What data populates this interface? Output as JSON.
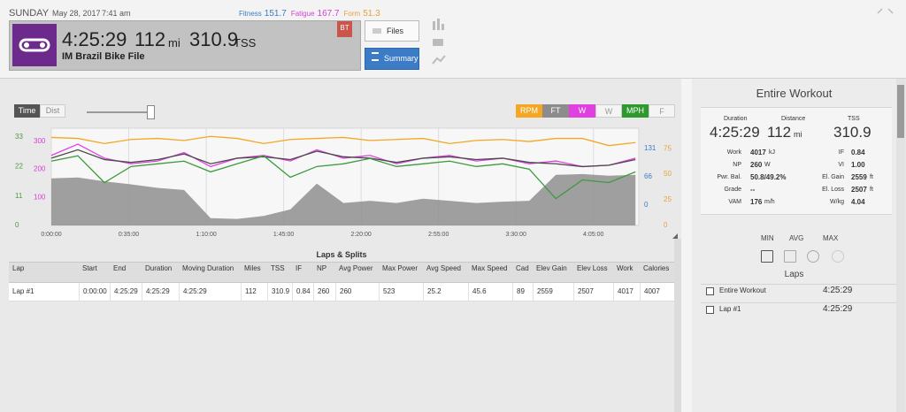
{
  "header": {
    "day": "SUNDAY",
    "date": "May 28, 2017",
    "time": "7:41 am",
    "metrics": [
      {
        "label": "Fitness",
        "value": "151.7",
        "color": "#3b7dc4"
      },
      {
        "label": "Fatigue",
        "value": "167.7",
        "color": "#d63fd6"
      },
      {
        "label": "Form",
        "value": "51.3",
        "color": "#e8a23a"
      }
    ],
    "duration": "4:25:29",
    "distance": "112",
    "distance_unit": "mi",
    "tss": "310.9",
    "tss_unit": "TSS",
    "title": "IM Brazil Bike File",
    "badge": "BT",
    "buttons": [
      "Files",
      "Summary"
    ]
  },
  "controls": {
    "modes": [
      "Time",
      "Dist"
    ]
  },
  "chart": {
    "type": "line",
    "toggles": [
      {
        "label": "RPM",
        "color": "#f5a623",
        "active": true
      },
      {
        "label": "FT",
        "color": "#8c8c8c",
        "active": true
      },
      {
        "label": "W",
        "color": "#e040e0",
        "active": true
      },
      {
        "label": "W",
        "color": "#999999",
        "active": false
      },
      {
        "label": "MPH",
        "color": "#2e9a2e",
        "active": true
      },
      {
        "label": "F",
        "color": "#999999",
        "active": false
      }
    ],
    "xlim": [
      0,
      265.5
    ],
    "xticks": [
      {
        "value": 0,
        "label": "0:00:00"
      },
      {
        "value": 35,
        "label": "0:35:00"
      },
      {
        "value": 70,
        "label": "1:10:00"
      },
      {
        "value": 105,
        "label": "1:45:00"
      },
      {
        "value": 140,
        "label": "2:20:00"
      },
      {
        "value": 175,
        "label": "2:55:00"
      },
      {
        "value": 210,
        "label": "3:30:00"
      },
      {
        "value": 245,
        "label": "4:05:00"
      }
    ],
    "y_axes": [
      {
        "color": "#4a9a3a",
        "ylim": [
          0,
          36.3
        ],
        "yticks": [
          0,
          11,
          22,
          33
        ]
      },
      {
        "color": "#d63fd6",
        "ylim": [
          0,
          347
        ],
        "yticks": [
          100,
          200,
          300
        ]
      },
      {
        "color": "#3b7dc4",
        "ylim": [
          -47,
          178
        ],
        "yticks": [
          0,
          66,
          131
        ]
      },
      {
        "color": "#e8a23a",
        "ylim": [
          0,
          95
        ],
        "yticks": [
          0,
          25,
          50,
          75
        ]
      }
    ],
    "x": [
      0,
      12,
      24,
      36,
      48,
      60,
      72,
      84,
      96,
      108,
      120,
      132,
      144,
      156,
      168,
      180,
      192,
      204,
      216,
      228,
      240,
      252,
      264
    ],
    "series": [
      {
        "color": "#8f8f8f",
        "axis": 2,
        "fill": true,
        "values": [
          62,
          64,
          55,
          48,
          40,
          35,
          -30,
          -32,
          -25,
          -10,
          50,
          5,
          10,
          5,
          15,
          10,
          5,
          8,
          10,
          70,
          72,
          68,
          70
        ]
      },
      {
        "color": "#f5a623",
        "axis": 3,
        "values": [
          86,
          85,
          80,
          84,
          85,
          83,
          87,
          85,
          80,
          84,
          85,
          86,
          83,
          84,
          85,
          80,
          83,
          84,
          82,
          85,
          85,
          78,
          81
        ]
      },
      {
        "color": "#e040e0",
        "axis": 1,
        "values": [
          250,
          290,
          240,
          220,
          230,
          260,
          210,
          240,
          250,
          230,
          270,
          240,
          250,
          220,
          240,
          250,
          230,
          240,
          220,
          230,
          210,
          215,
          240
        ]
      },
      {
        "color": "#4a4a4a",
        "axis": 1,
        "values": [
          240,
          270,
          235,
          225,
          235,
          255,
          220,
          240,
          245,
          235,
          265,
          245,
          240,
          225,
          240,
          245,
          235,
          240,
          225,
          220,
          210,
          215,
          235
        ]
      },
      {
        "color": "#3d9a3d",
        "axis": 0,
        "values": [
          24,
          26,
          16,
          22,
          23,
          24,
          20,
          23,
          26,
          18,
          22,
          23,
          25,
          22,
          23,
          24,
          22,
          23,
          21,
          10,
          17,
          16,
          20
        ]
      }
    ]
  },
  "laps": {
    "title": "Laps & Splits",
    "columns": [
      "Lap",
      "Start",
      "End",
      "Duration",
      "Moving Duration",
      "Miles",
      "TSS",
      "IF",
      "NP",
      "Avg Power",
      "Max Power",
      "Avg Speed",
      "Max Speed",
      "Cad",
      "Elev Gain",
      "Elev Loss",
      "Work",
      "Calories"
    ],
    "rows": [
      [
        "Lap #1",
        "0:00:00",
        "4:25:29",
        "4:25:29",
        "4:25:29",
        "112",
        "310.9",
        "0.84",
        "260",
        "260",
        "523",
        "25.2",
        "45.6",
        "89",
        "2559",
        "2507",
        "4017",
        "4007"
      ]
    ]
  },
  "summary": {
    "title": "Entire Workout",
    "top": [
      {
        "label": "Duration",
        "value": "4:25:29"
      },
      {
        "label": "Distance",
        "value": "112",
        "unit": "mi"
      },
      {
        "label": "TSS",
        "value": "310.9"
      }
    ],
    "left": [
      {
        "label": "Work",
        "value": "4017",
        "unit": "kJ"
      },
      {
        "label": "NP",
        "value": "260",
        "unit": "W"
      },
      {
        "label": "Pwr. Bal.",
        "value": "50.8/49.2%"
      },
      {
        "label": "Grade",
        "value": "--"
      },
      {
        "label": "VAM",
        "value": "176",
        "unit": "m/h"
      }
    ],
    "right": [
      {
        "label": "IF",
        "value": "0.84"
      },
      {
        "label": "VI",
        "value": "1.00"
      },
      {
        "label": "El. Gain",
        "value": "2559",
        "unit": "ft"
      },
      {
        "label": "El. Loss",
        "value": "2507",
        "unit": "ft"
      },
      {
        "label": "W/kg",
        "value": "4.04"
      }
    ],
    "tabs": [
      "MIN",
      "AVG",
      "MAX"
    ],
    "laps_title": "Laps",
    "laps": [
      {
        "name": "Entire Workout",
        "time": "4:25:29"
      },
      {
        "name": "Lap #1",
        "time": "4:25:29"
      }
    ]
  }
}
